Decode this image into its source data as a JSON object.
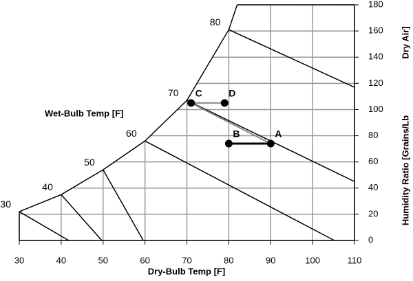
{
  "chart_data": {
    "type": "psychrometric",
    "x_label": "Dry-Bulb Temp [F]",
    "y_label": [
      "Humidity Ratio [Grains/Lb",
      "Dry Air]"
    ],
    "wet_bulb_label": "Wet-Bulb Temp [F]",
    "xlim": [
      30,
      110
    ],
    "xticks": [
      30,
      40,
      50,
      60,
      70,
      80,
      90,
      100,
      110
    ],
    "ylim": [
      0,
      180
    ],
    "yticks": [
      0,
      20,
      40,
      60,
      80,
      100,
      120,
      140,
      160,
      180
    ],
    "grid": true,
    "grid_color": "#999999",
    "saturation_curve": {
      "x": [
        30,
        40,
        50,
        60,
        70,
        80,
        82
      ],
      "y": [
        22,
        35,
        54,
        76,
        107,
        161,
        180
      ]
    },
    "wet_bulb_lines": [
      {
        "label": "30",
        "x": [
          30,
          41.8
        ],
        "y": [
          22,
          0
        ]
      },
      {
        "label": "40",
        "x": [
          40,
          49.7
        ],
        "y": [
          35,
          0
        ]
      },
      {
        "label": "50",
        "x": [
          50,
          59.6
        ],
        "y": [
          54,
          0
        ]
      },
      {
        "label": "60",
        "x": [
          60,
          105.2
        ],
        "y": [
          76,
          0
        ]
      },
      {
        "label": "70",
        "x": [
          70,
          110
        ],
        "y": [
          107,
          45
        ]
      },
      {
        "label": "80",
        "x": [
          80,
          110
        ],
        "y": [
          161,
          117
        ]
      }
    ],
    "segments": [
      {
        "color": "#000000",
        "width": 3,
        "x": [
          80,
          90
        ],
        "y": [
          74,
          74
        ]
      },
      {
        "color": "#888888",
        "width": 2,
        "x": [
          71,
          79
        ],
        "y": [
          105,
          105
        ]
      },
      {
        "color": "#888888",
        "width": 2,
        "x": [
          71,
          90
        ],
        "y": [
          105,
          74
        ]
      }
    ],
    "points": [
      {
        "name": "A",
        "x": 90,
        "y": 74
      },
      {
        "name": "B",
        "x": 80,
        "y": 74
      },
      {
        "name": "C",
        "x": 71,
        "y": 105
      },
      {
        "name": "D",
        "x": 79,
        "y": 105
      }
    ]
  }
}
